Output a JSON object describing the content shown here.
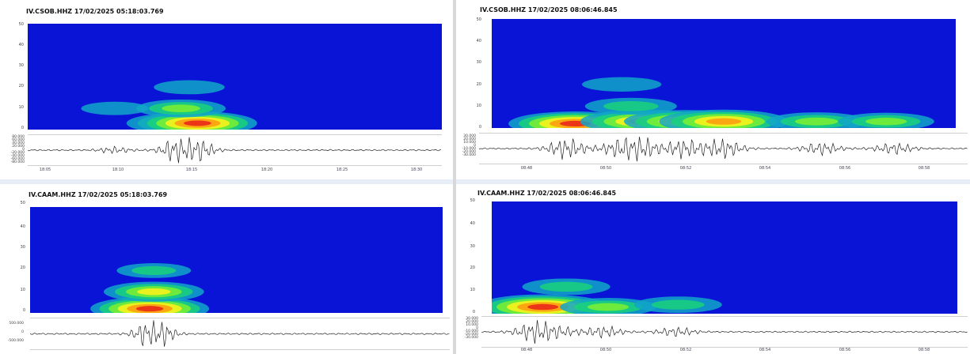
{
  "colors": {
    "spectrogram_background": "#0a14d6",
    "waveform_line": "#222222"
  },
  "panels": [
    {
      "title": "IV.CSOB.HHZ 17/02/2025 05:18:03.769",
      "chart_data": {
        "type": "heatmap",
        "title": "IV.CSOB.HHZ 17/02/2025 05:18:03.769",
        "y_ticks": [
          "0",
          "10",
          "20",
          "30",
          "40",
          "50"
        ],
        "ylim": [
          0,
          50
        ],
        "waveform_y_ticks": [
          "80.000",
          "60.000",
          "40.000",
          "20.000",
          "0",
          "-20.000",
          "-40.000",
          "-60.000",
          "-80.000"
        ],
        "x_ticks": [
          "18:05",
          "18:10",
          "18:15",
          "18:20",
          "18:25",
          "18:30"
        ],
        "energy_bursts": [
          {
            "t": 0.36,
            "f": 3,
            "level": 0.75
          },
          {
            "t": 0.41,
            "f": 3,
            "level": 1.0
          },
          {
            "t": 0.37,
            "f": 10,
            "level": 0.6
          },
          {
            "t": 0.39,
            "f": 20,
            "level": 0.35
          },
          {
            "t": 0.21,
            "f": 10,
            "level": 0.3
          }
        ]
      }
    },
    {
      "title": "IV.CSOB.HHZ 17/02/2025 08:06:46.845",
      "chart_data": {
        "type": "heatmap",
        "title": "IV.CSOB.HHZ 17/02/2025 08:06:46.845",
        "y_ticks": [
          "0",
          "10",
          "20",
          "30",
          "40",
          "50"
        ],
        "ylim": [
          0,
          50
        ],
        "waveform_y_ticks": [
          "30.000",
          "20.000",
          "10.000",
          "0",
          "-10.000",
          "-20.000",
          "-30.000"
        ],
        "x_ticks": [
          "08:48",
          "08:50",
          "08:52",
          "08:54",
          "08:56",
          "08:58"
        ],
        "energy_bursts": [
          {
            "t": 0.18,
            "f": 2,
            "level": 1.0
          },
          {
            "t": 0.33,
            "f": 3,
            "level": 0.95
          },
          {
            "t": 0.42,
            "f": 3,
            "level": 0.9
          },
          {
            "t": 0.5,
            "f": 3,
            "level": 0.95
          },
          {
            "t": 0.7,
            "f": 3,
            "level": 0.6
          },
          {
            "t": 0.85,
            "f": 3,
            "level": 0.55
          },
          {
            "t": 0.3,
            "f": 10,
            "level": 0.5
          },
          {
            "t": 0.28,
            "f": 20,
            "level": 0.35
          }
        ]
      }
    },
    {
      "title": "IV.CAAM.HHZ 17/02/2025 05:18:03.769",
      "chart_data": {
        "type": "heatmap",
        "title": "IV.CAAM.HHZ 17/02/2025 05:18:03.769",
        "y_ticks": [
          "0",
          "10",
          "20",
          "30",
          "40",
          "50"
        ],
        "ylim": [
          0,
          50
        ],
        "waveform_y_ticks": [
          "500.000",
          "0",
          "-500.000"
        ],
        "x_ticks": [],
        "energy_bursts": [
          {
            "t": 0.29,
            "f": 2,
            "level": 1.0
          },
          {
            "t": 0.3,
            "f": 10,
            "level": 0.75
          },
          {
            "t": 0.3,
            "f": 20,
            "level": 0.4
          }
        ]
      }
    },
    {
      "title": "IV.CAAM.HHZ 17/02/2025 08:06:46.845",
      "chart_data": {
        "type": "heatmap",
        "title": "IV.CAAM.HHZ 17/02/2025 08:06:46.845",
        "y_ticks": [
          "0",
          "10",
          "20",
          "30",
          "40",
          "50"
        ],
        "ylim": [
          0,
          50
        ],
        "waveform_y_ticks": [
          "30.000",
          "20.000",
          "10.000",
          "0",
          "-10.000",
          "-20.000",
          "-30.000"
        ],
        "x_ticks": [
          "08:48",
          "08:50",
          "08:52",
          "08:54",
          "08:56",
          "08:58"
        ],
        "energy_bursts": [
          {
            "t": 0.11,
            "f": 3,
            "level": 1.0
          },
          {
            "t": 0.25,
            "f": 3,
            "level": 0.55
          },
          {
            "t": 0.16,
            "f": 12,
            "level": 0.45
          },
          {
            "t": 0.4,
            "f": 4,
            "level": 0.45
          }
        ]
      }
    }
  ]
}
